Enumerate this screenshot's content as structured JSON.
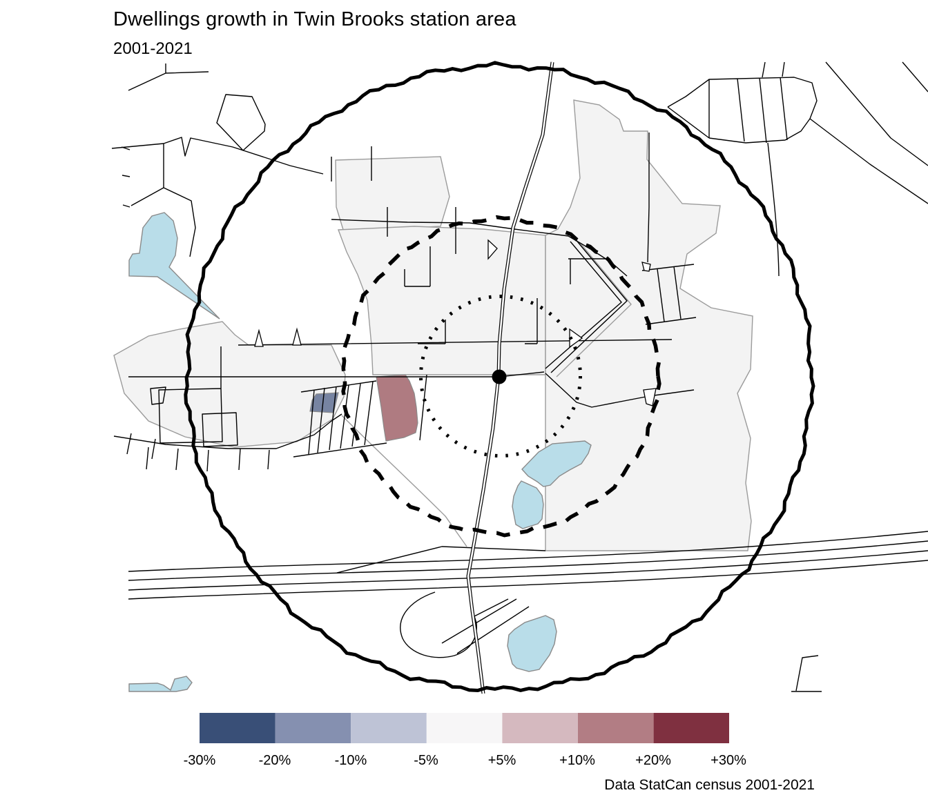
{
  "title": "Dwellings growth in Twin Brooks station area",
  "subtitle": "2001-2021",
  "caption": "Data StatCan census 2001-2021",
  "legend": {
    "colors": [
      "#394F77",
      "#8590B0",
      "#BEC3D6",
      "#F7F6F7",
      "#D5B9BF",
      "#B27D84",
      "#7F3040"
    ],
    "labels": [
      "-30%",
      "-20%",
      "-10%",
      "-5%",
      "+5%",
      "+10%",
      "+20%",
      "+30%"
    ]
  },
  "map": {
    "colors": {
      "water": "#B9DDE9",
      "tract_fill": "#F3F3F3",
      "decline_tract": "#7784A2",
      "growth_tract": "#AF7B81",
      "ring": "#000000"
    }
  },
  "chart_data": {
    "type": "heatmap",
    "title": "Dwellings growth in Twin Brooks station area",
    "subtitle": "2001-2021",
    "caption": "Data StatCan census 2001-2021",
    "legend_bins": [
      "-30%",
      "-20%",
      "-10%",
      "-5%",
      "+5%",
      "+10%",
      "+20%",
      "+30%"
    ],
    "legend_bin_colors": [
      "#394F77",
      "#8590B0",
      "#BEC3D6",
      "#F7F6F7",
      "#D5B9BF",
      "#B27D84",
      "#7F3040"
    ],
    "map_features": [
      {
        "feature": "station-point",
        "style": "solid black dot at map centre"
      },
      {
        "feature": "inner-ring",
        "style": "dotted circle around station"
      },
      {
        "feature": "middle-ring",
        "style": "dashed circle around station"
      },
      {
        "feature": "outer-ring",
        "style": "thick jagged solid circle around station"
      },
      {
        "feature": "census-tracts",
        "value_bin": "-5% to +5%",
        "color": "#F3F3F3"
      },
      {
        "feature": "declining-parcel",
        "value_bin": "-20% to -10%",
        "color": "#7784A2"
      },
      {
        "feature": "growth-parcel",
        "value_bin": "+10% to +20%",
        "color": "#AF7B81"
      },
      {
        "feature": "lakes",
        "count": 5,
        "color": "#B9DDE9"
      },
      {
        "feature": "roads-and-highway",
        "color": "#000000"
      }
    ]
  }
}
